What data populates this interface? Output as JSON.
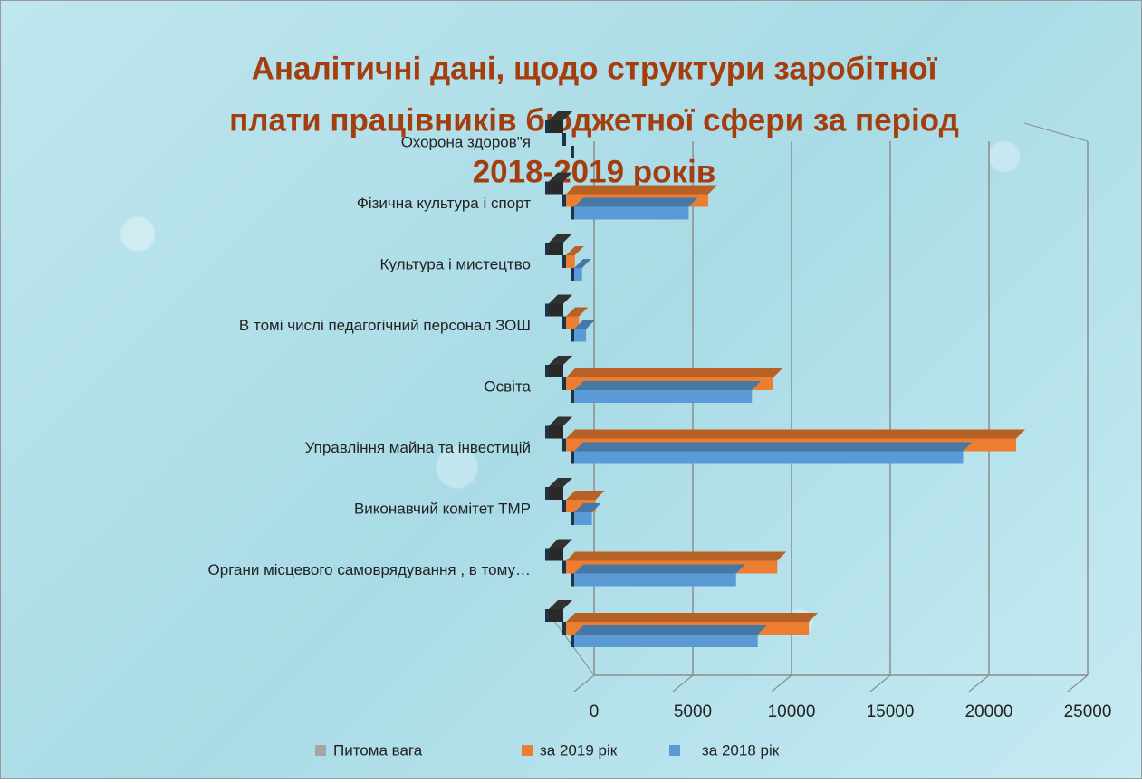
{
  "chart_data": {
    "type": "bar3d",
    "title": [
      "Аналітичні дані, щодо структури заробітної",
      "плати працівників бюджетної сфери за період",
      "2018-2019 років"
    ],
    "categories": [
      null,
      "Органи місцевого самоврядування , в тому…",
      "Виконавчий комітет ТМР",
      "Управління майна та інвестицій",
      "Освіта",
      "В томі числі педагогічний персонал ЗОШ",
      "Культура і мистецтво",
      "Фізична культура і спорт",
      "Охорона здоров\"я"
    ],
    "series": [
      {
        "name": "Питома вага",
        "color": "#a5a5a5",
        "values": [
          0,
          0,
          0,
          0,
          0,
          0,
          0,
          0,
          0
        ]
      },
      {
        "name": "за 2019 рік",
        "color": "#ed7d31",
        "values": [
          12300,
          10700,
          1500,
          22800,
          10500,
          650,
          450,
          7200,
          0
        ]
      },
      {
        "name": "за 2018 рік",
        "color": "#5b9bd5",
        "values": [
          9300,
          8200,
          900,
          19700,
          9000,
          600,
          400,
          5800,
          0
        ]
      }
    ],
    "xlim": [
      0,
      25000
    ],
    "xticks": [
      0,
      5000,
      10000,
      15000,
      20000,
      25000
    ],
    "grid": true,
    "legend": "bottom"
  }
}
